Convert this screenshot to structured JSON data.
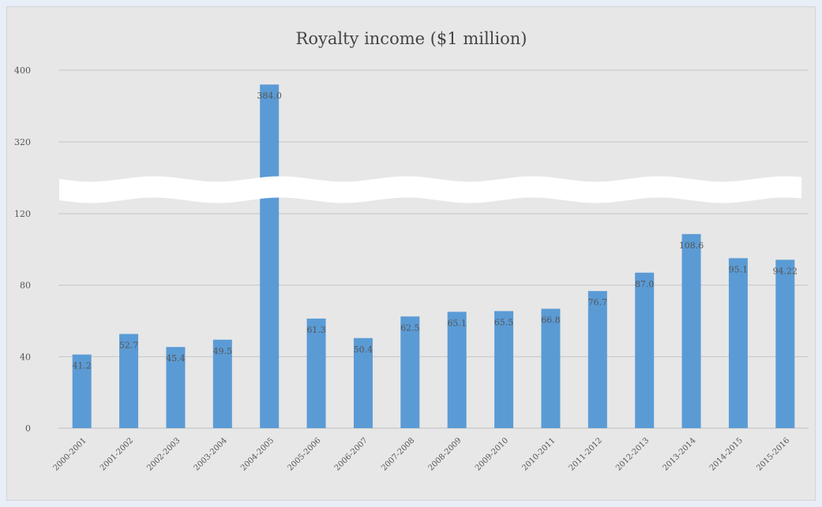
{
  "chart_data": {
    "type": "bar",
    "title": "Royalty income ($1 million)",
    "xlabel": "",
    "ylabel": "",
    "categories": [
      "2000-2001",
      "2001-2002",
      "2002-2003",
      "2003-2004",
      "2004-2005",
      "2005-2006",
      "2006-2007",
      "2007-2008",
      "2008-2009",
      "2009-2010",
      "2010-2011",
      "2011-2012",
      "2012-2013",
      "2013-2014",
      "2014-2015",
      "2015-2016"
    ],
    "values": [
      41.2,
      52.7,
      45.4,
      49.5,
      384.0,
      61.3,
      50.4,
      62.5,
      65.1,
      65.5,
      66.8,
      76.7,
      87.0,
      108.6,
      95.1,
      94.22
    ],
    "data_labels": [
      "41.2",
      "52.7",
      "45.4",
      "49.5",
      "384.0",
      "61.3",
      "50.4",
      "62.5",
      "65.1",
      "65.5",
      "66.8",
      "76.7",
      "87.0",
      "108.6",
      "95.1",
      "94.22"
    ],
    "y_ticks": [
      "0",
      "40",
      "80",
      "120",
      "320",
      "400"
    ],
    "axis_break": {
      "from": 120,
      "to": 320
    },
    "ylim": [
      0,
      400
    ],
    "grid": true,
    "bar_color": "#5b9bd5"
  }
}
